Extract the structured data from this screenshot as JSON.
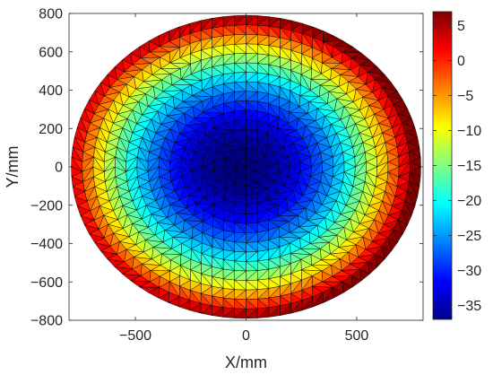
{
  "chart_data": {
    "type": "heatmap",
    "subtype": "triangulated-mesh-surface",
    "title": "",
    "xlabel": "X/mm",
    "ylabel": "Y/mm",
    "xlim": [
      -800,
      800
    ],
    "ylim": [
      -800,
      800
    ],
    "xticks": [
      -500,
      0,
      500
    ],
    "yticks": [
      -800,
      -600,
      -400,
      -200,
      0,
      200,
      400,
      600,
      800
    ],
    "xtick_labels": [
      "−500",
      "0",
      "500"
    ],
    "ytick_labels": [
      "−800",
      "−600",
      "−400",
      "−200",
      "0",
      "200",
      "400",
      "600",
      "800"
    ],
    "colormap": "jet",
    "colorbar": {
      "range": [
        -37,
        7
      ],
      "ticks": [
        5,
        0,
        -5,
        -10,
        -15,
        -20,
        -25,
        -30,
        -35
      ],
      "tick_labels": [
        "5",
        "0",
        "−5",
        "−10",
        "−15",
        "−20",
        "−25",
        "−30",
        "−35"
      ]
    },
    "field": {
      "description_of_shape": "elliptical domain, minimum near center, rising toward rim",
      "domain_semi_axis_x": 790,
      "domain_semi_axis_y": 790,
      "min_value": -37,
      "min_location": [
        -30,
        0
      ],
      "rim_value": 7,
      "mesh_edge_color": "#000000"
    },
    "grid": false
  }
}
